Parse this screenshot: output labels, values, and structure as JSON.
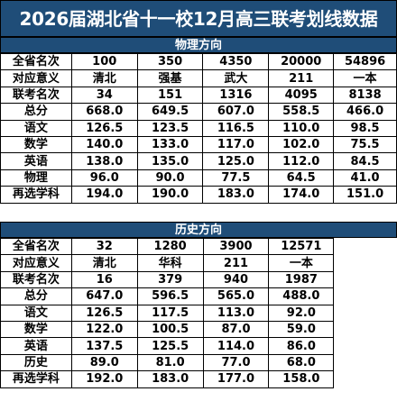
{
  "title": "2026届湖北省十一校12月高三联考划线数据",
  "physics": {
    "heading": "物理方向",
    "rows": [
      {
        "label": "全省名次",
        "cells": [
          "100",
          "350",
          "4350",
          "20000",
          "54896"
        ]
      },
      {
        "label": "对应意义",
        "cells": [
          "清北",
          "强基",
          "武大",
          "211",
          "一本"
        ]
      },
      {
        "label": "联考名次",
        "cells": [
          "34",
          "151",
          "1316",
          "4095",
          "8138"
        ]
      },
      {
        "label": "总分",
        "cells": [
          "668.0",
          "649.5",
          "607.0",
          "558.5",
          "466.0"
        ]
      },
      {
        "label": "语文",
        "cells": [
          "126.5",
          "123.5",
          "116.5",
          "110.0",
          "98.5"
        ]
      },
      {
        "label": "数学",
        "cells": [
          "140.0",
          "133.0",
          "117.0",
          "102.0",
          "75.5"
        ]
      },
      {
        "label": "英语",
        "cells": [
          "138.0",
          "135.0",
          "125.0",
          "112.0",
          "84.5"
        ]
      },
      {
        "label": "物理",
        "cells": [
          "96.0",
          "90.0",
          "77.5",
          "64.5",
          "41.0"
        ]
      },
      {
        "label": "再选学科",
        "cells": [
          "194.0",
          "190.0",
          "183.0",
          "174.0",
          "151.0"
        ]
      }
    ]
  },
  "history": {
    "heading": "历史方向",
    "rows": [
      {
        "label": "全省名次",
        "cells": [
          "32",
          "1280",
          "3900",
          "12571"
        ]
      },
      {
        "label": "对应意义",
        "cells": [
          "清北",
          "华科",
          "211",
          "一本"
        ]
      },
      {
        "label": "联考名次",
        "cells": [
          "16",
          "379",
          "940",
          "1987"
        ]
      },
      {
        "label": "总分",
        "cells": [
          "647.0",
          "596.5",
          "565.0",
          "488.0"
        ]
      },
      {
        "label": "语文",
        "cells": [
          "126.5",
          "117.5",
          "113.0",
          "92.0"
        ]
      },
      {
        "label": "数学",
        "cells": [
          "122.0",
          "100.5",
          "87.0",
          "59.0"
        ]
      },
      {
        "label": "英语",
        "cells": [
          "137.5",
          "125.5",
          "114.0",
          "86.0"
        ]
      },
      {
        "label": "历史",
        "cells": [
          "89.0",
          "81.0",
          "77.0",
          "68.0"
        ]
      },
      {
        "label": "再选学科",
        "cells": [
          "192.0",
          "183.0",
          "177.0",
          "158.0"
        ]
      }
    ]
  },
  "colors": {
    "header_bg": "#1f4d78",
    "header_text": "#ffffff",
    "grid_line": "#000000"
  }
}
